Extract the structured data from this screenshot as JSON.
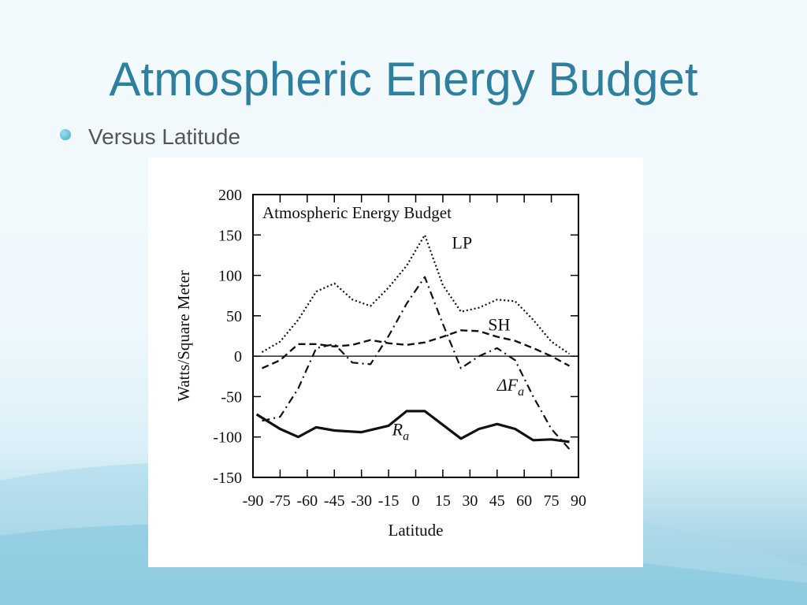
{
  "slide": {
    "title": "Atmospheric Energy Budget",
    "bullet": "Versus Latitude",
    "title_color": "#2f7f9e"
  },
  "chart_data": {
    "type": "line",
    "title": "Atmospheric Energy Budget",
    "xlabel": "Latitude",
    "ylabel": "Watts/Square Meter",
    "xlim": [
      -90,
      90
    ],
    "ylim": [
      -150,
      200
    ],
    "xticks": [
      "-90",
      "-75",
      "-60",
      "-45",
      "-30",
      "-15",
      "0",
      "15",
      "30",
      "45",
      "60",
      "75",
      "90"
    ],
    "yticks": [
      "200",
      "150",
      "100",
      "50",
      "0",
      "-50",
      "-100",
      "-150"
    ],
    "grid": false,
    "legend": "inline labels",
    "series": [
      {
        "name": "LP",
        "style": "dotted",
        "points": [
          [
            -85,
            5
          ],
          [
            -75,
            18
          ],
          [
            -65,
            45
          ],
          [
            -55,
            80
          ],
          [
            -45,
            90
          ],
          [
            -35,
            70
          ],
          [
            -25,
            62
          ],
          [
            -15,
            85
          ],
          [
            -5,
            112
          ],
          [
            5,
            150
          ],
          [
            15,
            88
          ],
          [
            25,
            55
          ],
          [
            35,
            60
          ],
          [
            45,
            70
          ],
          [
            55,
            68
          ],
          [
            65,
            45
          ],
          [
            75,
            18
          ],
          [
            85,
            3
          ]
        ]
      },
      {
        "name": "SH",
        "style": "dashed",
        "points": [
          [
            -85,
            -15
          ],
          [
            -75,
            -5
          ],
          [
            -65,
            15
          ],
          [
            -55,
            15
          ],
          [
            -45,
            12
          ],
          [
            -35,
            14
          ],
          [
            -25,
            20
          ],
          [
            -15,
            16
          ],
          [
            -5,
            14
          ],
          [
            5,
            17
          ],
          [
            15,
            24
          ],
          [
            25,
            32
          ],
          [
            35,
            31
          ],
          [
            45,
            24
          ],
          [
            55,
            19
          ],
          [
            65,
            10
          ],
          [
            75,
            0
          ],
          [
            85,
            -12
          ]
        ]
      },
      {
        "name": "ΔFa",
        "label_main": "ΔF",
        "label_sub": "a",
        "style": "dash-dot",
        "points": [
          [
            -85,
            -80
          ],
          [
            -75,
            -75
          ],
          [
            -65,
            -40
          ],
          [
            -55,
            10
          ],
          [
            -45,
            15
          ],
          [
            -35,
            -8
          ],
          [
            -25,
            -10
          ],
          [
            -15,
            25
          ],
          [
            -5,
            65
          ],
          [
            5,
            98
          ],
          [
            15,
            40
          ],
          [
            25,
            -15
          ],
          [
            35,
            0
          ],
          [
            45,
            10
          ],
          [
            55,
            -5
          ],
          [
            65,
            -50
          ],
          [
            75,
            -90
          ],
          [
            85,
            -115
          ]
        ]
      },
      {
        "name": "Ra",
        "label_main": "R",
        "label_sub": "a",
        "style": "solid-thick",
        "points": [
          [
            -88,
            -72
          ],
          [
            -75,
            -90
          ],
          [
            -65,
            -100
          ],
          [
            -55,
            -88
          ],
          [
            -45,
            -92
          ],
          [
            -30,
            -94
          ],
          [
            -15,
            -86
          ],
          [
            -5,
            -68
          ],
          [
            5,
            -68
          ],
          [
            15,
            -85
          ],
          [
            25,
            -102
          ],
          [
            35,
            -90
          ],
          [
            45,
            -84
          ],
          [
            55,
            -90
          ],
          [
            65,
            -104
          ],
          [
            75,
            -103
          ],
          [
            85,
            -106
          ]
        ]
      }
    ]
  }
}
